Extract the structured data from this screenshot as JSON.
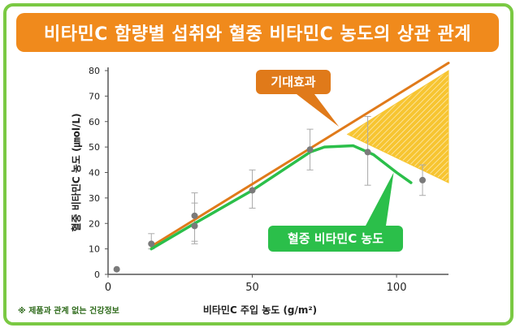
{
  "title": "비타민C 함량별 섭취와 혈중 비타민C 농도의 상관 관계",
  "footnote": "※ 제품과 관계 없는 건강정보",
  "colors": {
    "frame": "#7ac943",
    "banner": "#f08a1c",
    "expected_line": "#e07a1a",
    "measured_line": "#2bbf4a",
    "triangle": "#f7c531",
    "points": "#7a7a7a"
  },
  "chart_data": {
    "type": "line",
    "title": "비타민C 함량별 섭취와 혈중 비타민C 농도의 상관 관계",
    "xlabel": "비타민C 주입 농도 (g/m²)",
    "ylabel": "혈중 비타민C 농도 (㎛ol/L)",
    "xlim": [
      0,
      118
    ],
    "ylim": [
      0,
      80
    ],
    "x_ticks": [
      "0",
      "50",
      "100"
    ],
    "x_tick_values": [
      0,
      50,
      100
    ],
    "y_ticks": [
      "0",
      "10",
      "20",
      "30",
      "40",
      "50",
      "60",
      "70",
      "80"
    ],
    "y_tick_values": [
      0,
      10,
      20,
      30,
      40,
      50,
      60,
      70,
      80
    ],
    "grid": false,
    "series": [
      {
        "name": "기대효과",
        "style": "line",
        "x": [
          15,
          118
        ],
        "y": [
          11,
          83
        ]
      },
      {
        "name": "혈중 비타민C 농도",
        "style": "line",
        "x": [
          15,
          30,
          50,
          70,
          75,
          85,
          92,
          100,
          105
        ],
        "y": [
          10,
          20,
          33,
          48,
          50,
          50.5,
          47,
          40,
          36
        ]
      }
    ],
    "points": {
      "x": [
        3,
        15,
        30,
        30,
        50,
        70,
        90,
        109
      ],
      "y": [
        2,
        12,
        23,
        19,
        33,
        49,
        48,
        37
      ],
      "error_low": [
        0,
        10,
        12,
        13,
        26,
        41,
        35,
        31
      ],
      "error_high": [
        0,
        16,
        32,
        28,
        41,
        57,
        62,
        43
      ]
    },
    "highlight_region": {
      "x": [
        83,
        118,
        118
      ],
      "y": [
        55,
        80,
        36
      ]
    },
    "annotations": [
      {
        "text": "기대효과",
        "target_x": 80,
        "target_y": 58
      },
      {
        "text": "혈중 비타민C 농도",
        "target_x": 99,
        "target_y": 40
      }
    ]
  }
}
